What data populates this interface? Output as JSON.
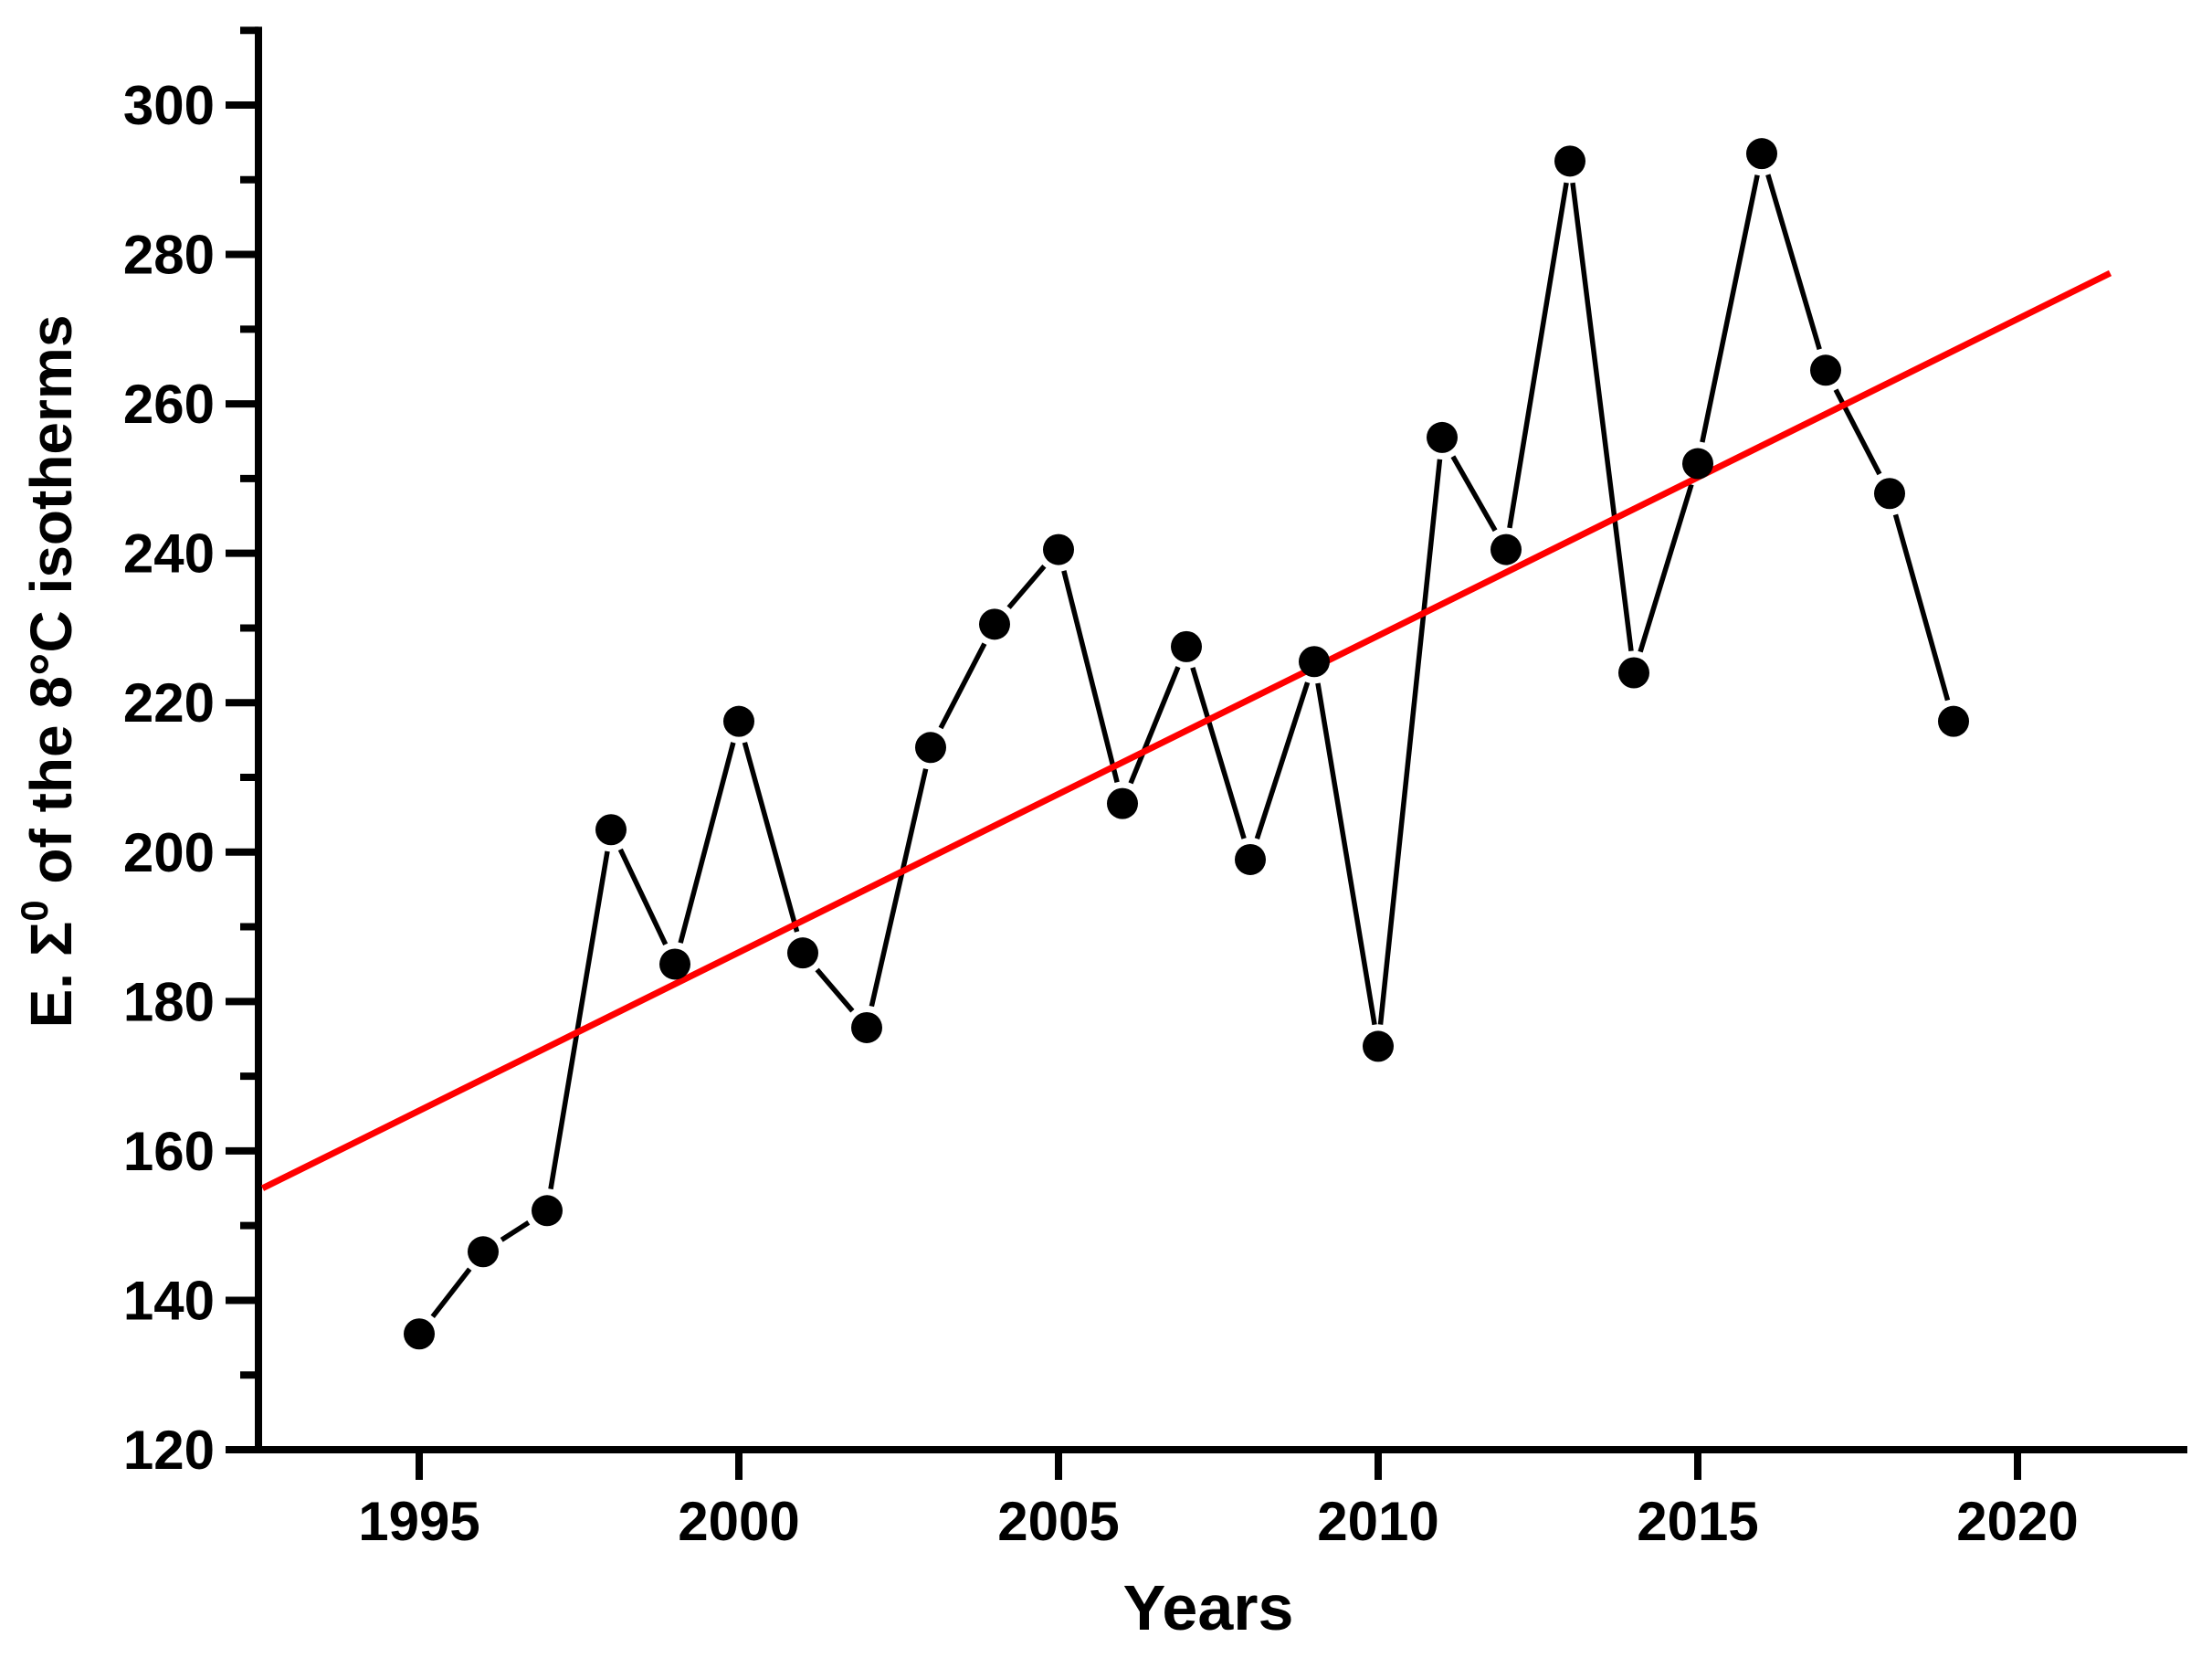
{
  "chart_data": {
    "type": "line",
    "title": "",
    "xlabel": "Years",
    "ylabel": "E. Σ⁰ of the 8°C isotherms",
    "ylabel_parts": {
      "prefix": "E. Σ",
      "superscript": "0",
      "suffix": " of the 8°C isotherms"
    },
    "x": [
      1995,
      1996,
      1997,
      1998,
      1999,
      2000,
      2001,
      2002,
      2003,
      2004,
      2005,
      2006,
      2007,
      2008,
      2009,
      2010,
      2011,
      2012,
      2013,
      2014,
      2015,
      2016,
      2017,
      2018,
      2019
    ],
    "y": [
      135.5,
      146.5,
      152,
      203,
      185,
      217.5,
      186.5,
      176.5,
      214,
      230.5,
      240.5,
      206.5,
      227.5,
      199,
      225.5,
      174,
      255.5,
      240.5,
      292.5,
      224,
      252,
      293.5,
      264.5,
      248,
      217.5
    ],
    "trend_line": {
      "x1": 1992.55,
      "y1": 155,
      "x2": 2021.45,
      "y2": 277.5,
      "color": "#ff0000"
    },
    "marker_color": "#000000",
    "line_color": "#000000",
    "axis_color": "#000000",
    "xlim": [
      1992.49,
      2022.57
    ],
    "ylim": [
      120,
      310
    ],
    "x_ticks_major": [
      1995,
      2000,
      2005,
      2010,
      2015,
      2020
    ],
    "y_ticks_major": [
      120,
      140,
      160,
      180,
      200,
      220,
      240,
      260,
      280,
      300
    ],
    "y_ticks_minor": [
      130,
      150,
      170,
      190,
      210,
      230,
      250,
      270,
      290,
      310
    ],
    "grid": false,
    "legend": false
  }
}
